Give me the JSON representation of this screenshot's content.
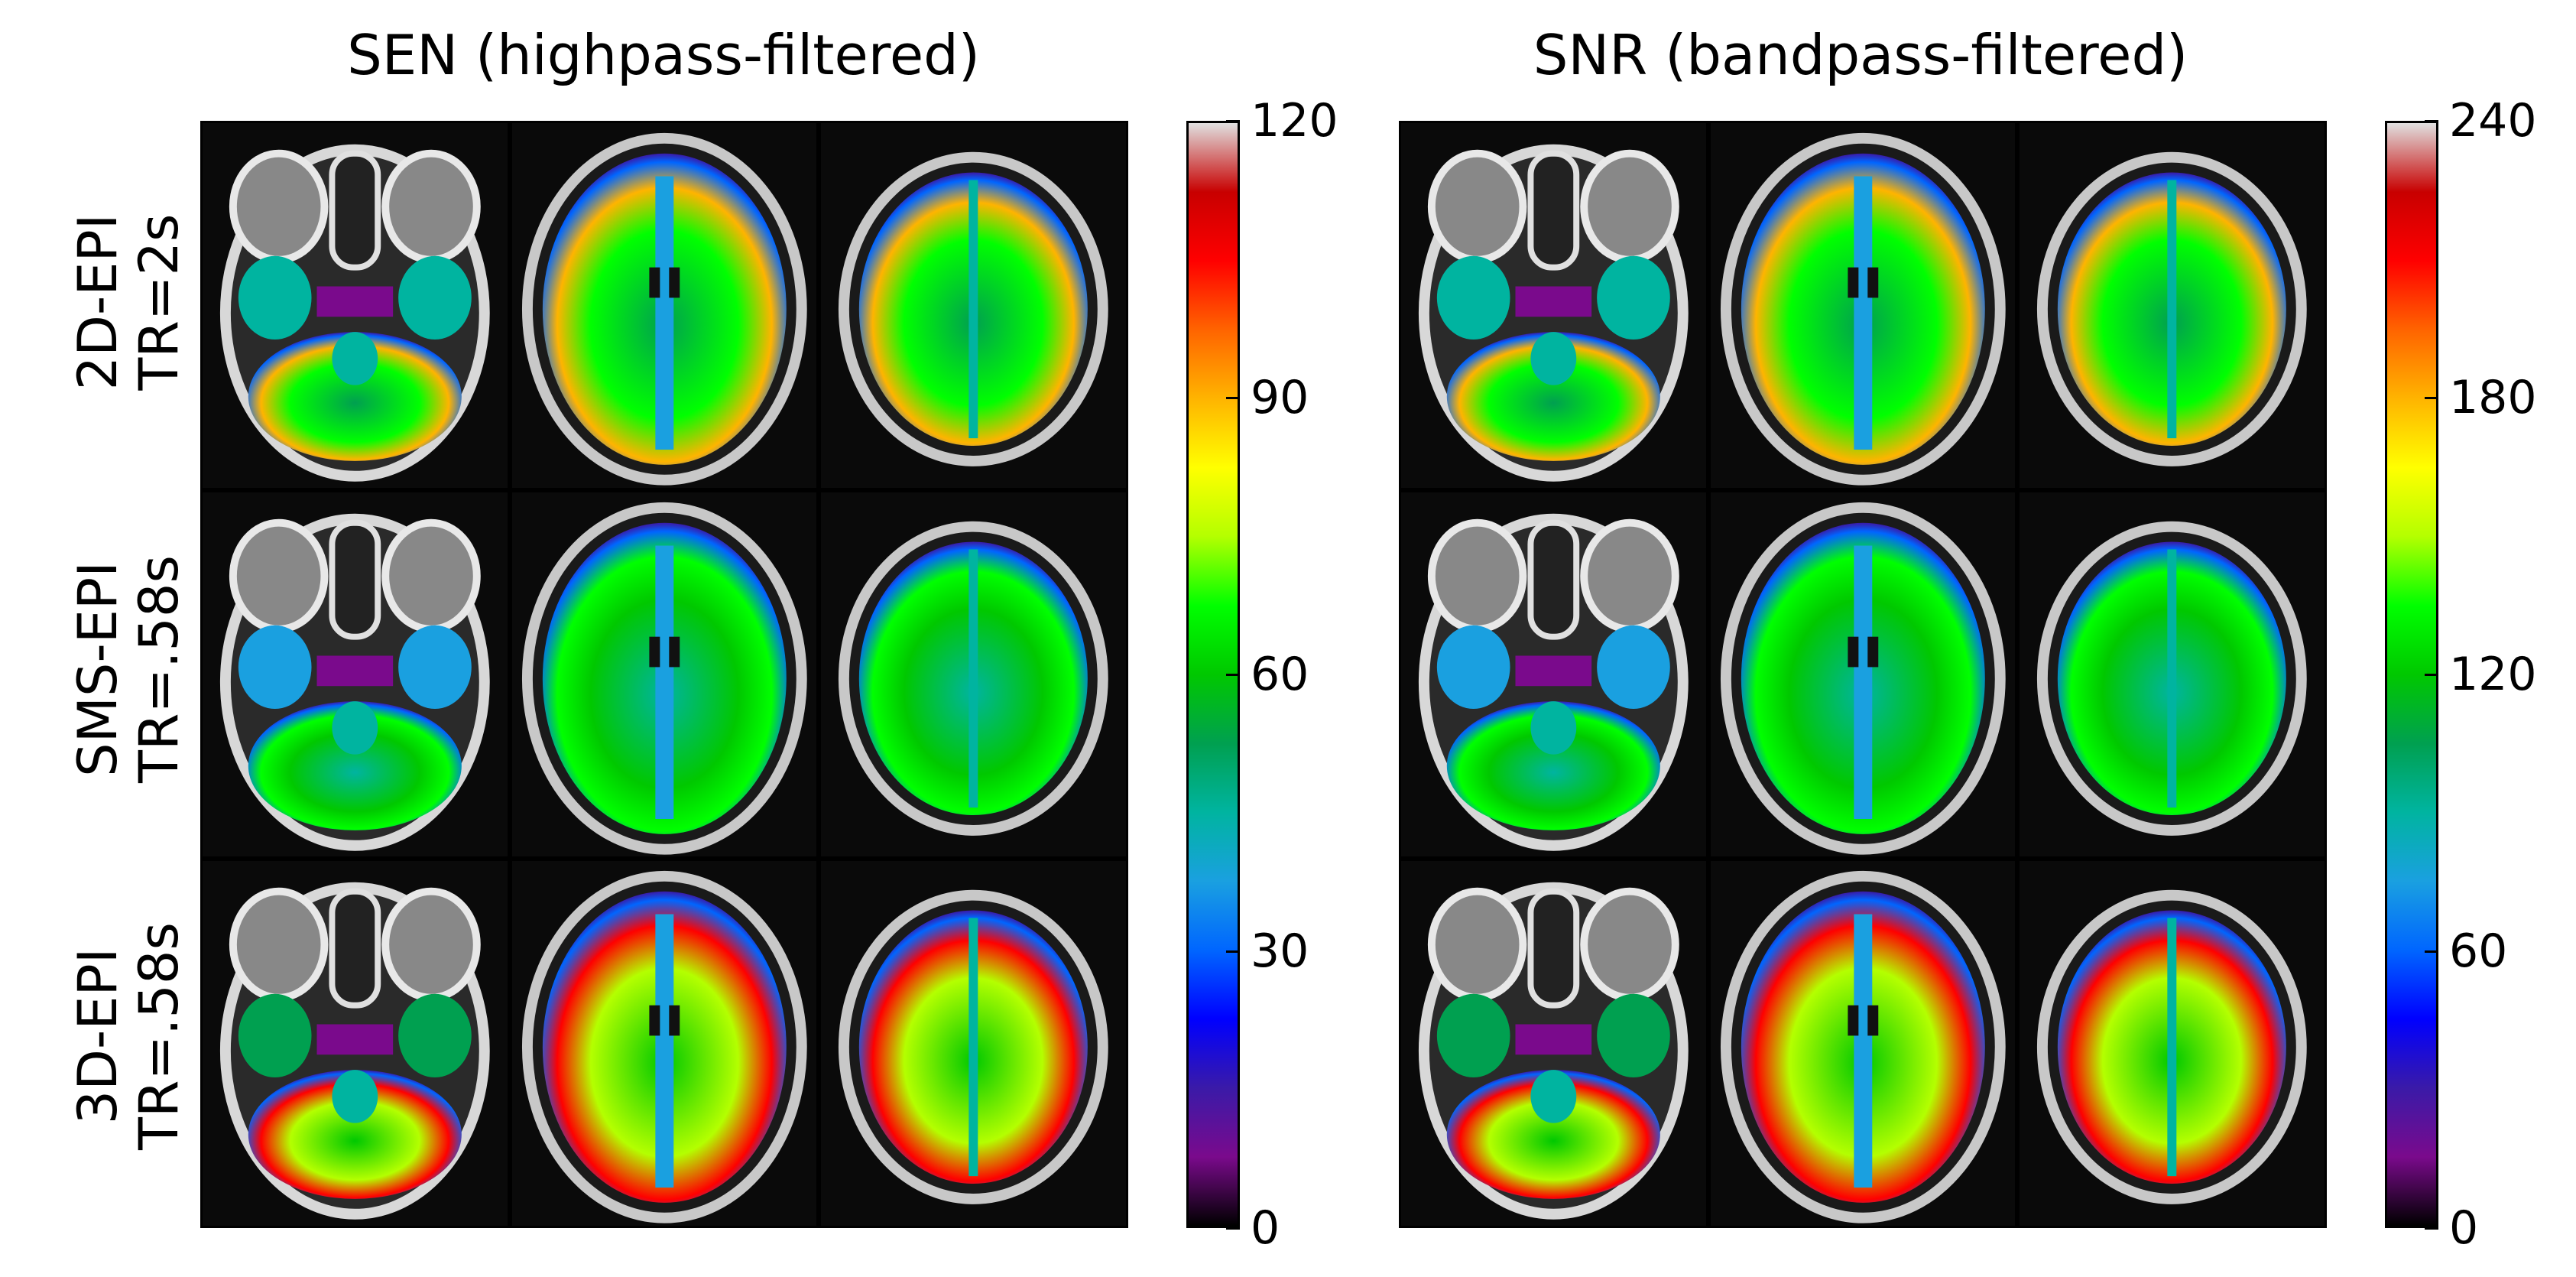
{
  "panels": [
    {
      "title": "SEN (highpass-filtered)",
      "colorbar_ticks": [
        "0",
        "30",
        "60",
        "90",
        "120"
      ]
    },
    {
      "title": "SNR (bandpass-filtered)",
      "colorbar_ticks": [
        "0",
        "60",
        "120",
        "180",
        "240"
      ]
    }
  ],
  "rows": [
    {
      "line1": "2D-EPI",
      "line2": "TR=2s"
    },
    {
      "line1": "SMS-EPI",
      "line2": "TR=.58s"
    },
    {
      "line1": "3D-EPI",
      "line2": "TR=.58s"
    }
  ],
  "colormap": [
    "#000000",
    "#7a0a8c",
    "#3a1aa8",
    "#0000ff",
    "#0066ff",
    "#1aa0e0",
    "#00b4a0",
    "#00a050",
    "#00c800",
    "#00ff00",
    "#b4ff00",
    "#ffff00",
    "#ffb400",
    "#ff6400",
    "#ff0000",
    "#c80000",
    "#e0e0e0"
  ]
}
